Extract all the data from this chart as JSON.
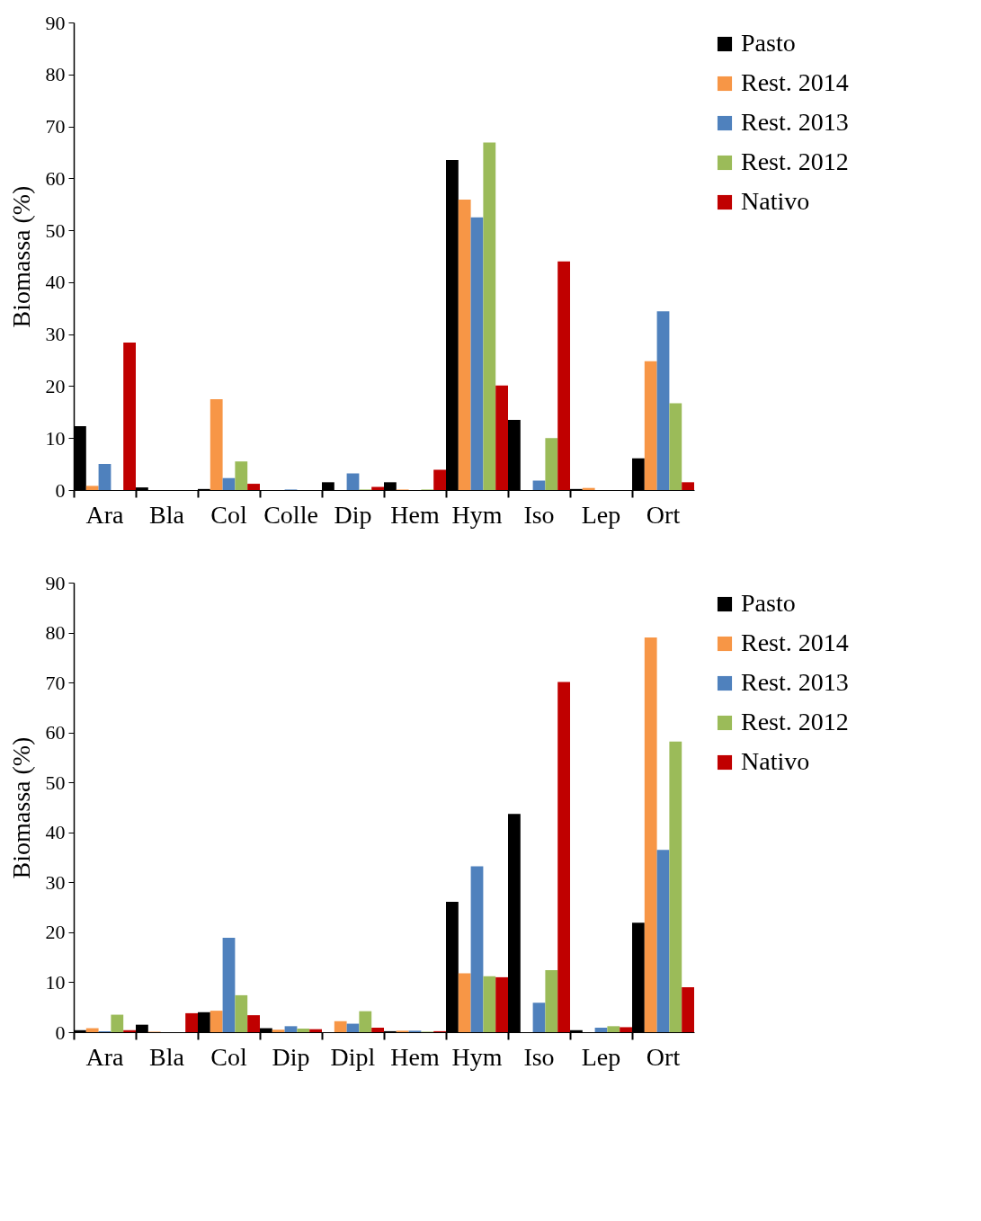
{
  "chart_data": [
    {
      "type": "bar",
      "ylabel": "Biomassa (%)",
      "categories": [
        "Ara",
        "Bla",
        "Col",
        "Colle",
        "Dip",
        "Hem",
        "Hym",
        "Iso",
        "Lep",
        "Ort"
      ],
      "ylim": [
        0,
        90
      ],
      "yticks": [
        0,
        10,
        20,
        30,
        40,
        50,
        60,
        70,
        80,
        90
      ],
      "grid": false,
      "legend": "right",
      "series": [
        {
          "name": "Pasto",
          "color": "#000000",
          "values": [
            12.3,
            0.5,
            0.2,
            0,
            1.5,
            1.5,
            63.5,
            13.5,
            0.2,
            6.1
          ]
        },
        {
          "name": "Rest. 2014",
          "color": "#f79646",
          "values": [
            0.8,
            0,
            17.5,
            0,
            0,
            0.1,
            55.9,
            0,
            0.4,
            24.8
          ]
        },
        {
          "name": "Rest. 2013",
          "color": "#4f81bd",
          "values": [
            5,
            0,
            2.3,
            0.1,
            3.2,
            0,
            52.5,
            1.8,
            0,
            34.4
          ]
        },
        {
          "name": "Rest. 2012",
          "color": "#9bbb59",
          "values": [
            0,
            0,
            5.5,
            0,
            0.1,
            0.1,
            66.9,
            10,
            0,
            16.7
          ]
        },
        {
          "name": "Nativo",
          "color": "#c00000",
          "values": [
            28.4,
            0,
            1.2,
            0,
            0.6,
            3.9,
            20.1,
            44,
            0,
            1.5
          ]
        }
      ]
    },
    {
      "type": "bar",
      "ylabel": "Biomassa (%)",
      "categories": [
        "Ara",
        "Bla",
        "Col",
        "Dip",
        "Dipl",
        "Hem",
        "Hym",
        "Iso",
        "Lep",
        "Ort"
      ],
      "ylim": [
        0,
        90
      ],
      "yticks": [
        0,
        10,
        20,
        30,
        40,
        50,
        60,
        70,
        80,
        90
      ],
      "grid": false,
      "legend": "right",
      "series": [
        {
          "name": "Pasto",
          "color": "#000000",
          "values": [
            0.4,
            1.5,
            4,
            0.8,
            0,
            0.2,
            26.1,
            43.7,
            0.4,
            21.9
          ]
        },
        {
          "name": "Rest. 2014",
          "color": "#f79646",
          "values": [
            0.8,
            0.1,
            4.3,
            0.5,
            2.2,
            0.3,
            11.8,
            0,
            0,
            79
          ]
        },
        {
          "name": "Rest. 2013",
          "color": "#4f81bd",
          "values": [
            0.2,
            0,
            18.9,
            1.2,
            1.7,
            0.3,
            33.2,
            5.9,
            0.9,
            36.5
          ]
        },
        {
          "name": "Rest. 2012",
          "color": "#9bbb59",
          "values": [
            3.5,
            0,
            7.4,
            0.7,
            4.2,
            0.1,
            11.2,
            12.4,
            1.2,
            58.2
          ]
        },
        {
          "name": "Nativo",
          "color": "#c00000",
          "values": [
            0.4,
            3.8,
            3.4,
            0.6,
            0.9,
            0.2,
            11,
            70.1,
            1,
            9
          ]
        }
      ]
    }
  ]
}
